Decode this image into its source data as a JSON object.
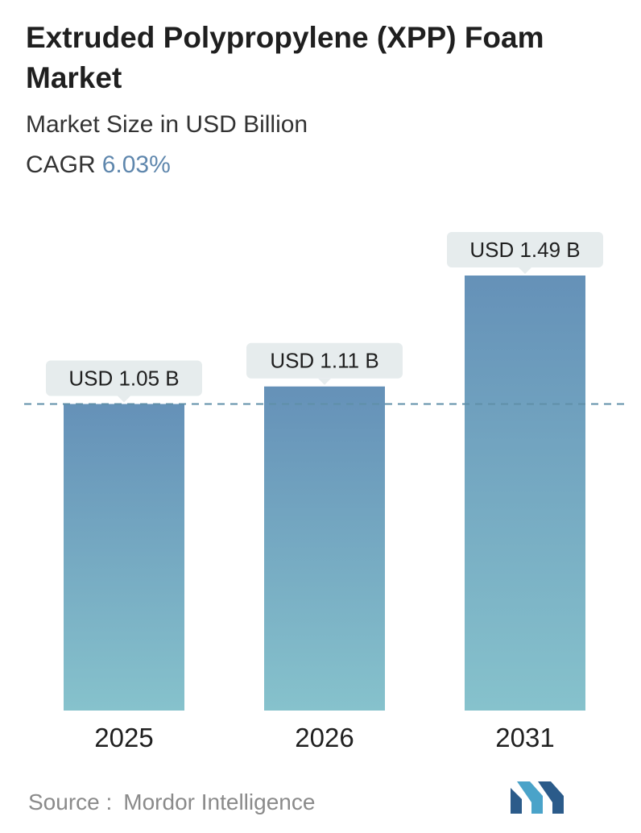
{
  "header": {
    "title": "Extruded Polypropylene (XPP) Foam Market",
    "subtitle": "Market Size in USD Billion",
    "cagr_label": "CAGR",
    "cagr_value": "6.03%"
  },
  "footer": {
    "source_label": "Source :",
    "source_name": "Mordor Intelligence",
    "logo_icon": "mordor-intelligence-logo-icon"
  },
  "colors": {
    "bar_top": "#6591b8",
    "bar_bottom": "#86c2cc",
    "label_bg": "#e6eced",
    "dashed_line": "#5f8fa8",
    "cagr_accent": "#5f87ad",
    "logo_dark": "#2b5b8a",
    "logo_light": "#4aa3c9"
  },
  "chart_data": {
    "type": "bar",
    "categories": [
      "2025",
      "2026",
      "2031"
    ],
    "values": [
      1.05,
      1.11,
      1.49
    ],
    "data_labels": [
      "USD 1.05 B",
      "USD 1.11 B",
      "USD 1.49 B"
    ],
    "title": "Extruded Polypropylene (XPP) Foam Market",
    "subtitle": "Market Size in USD Billion",
    "reference_line": {
      "value": 1.05,
      "style": "dashed"
    },
    "grid": false,
    "legend": "none"
  }
}
